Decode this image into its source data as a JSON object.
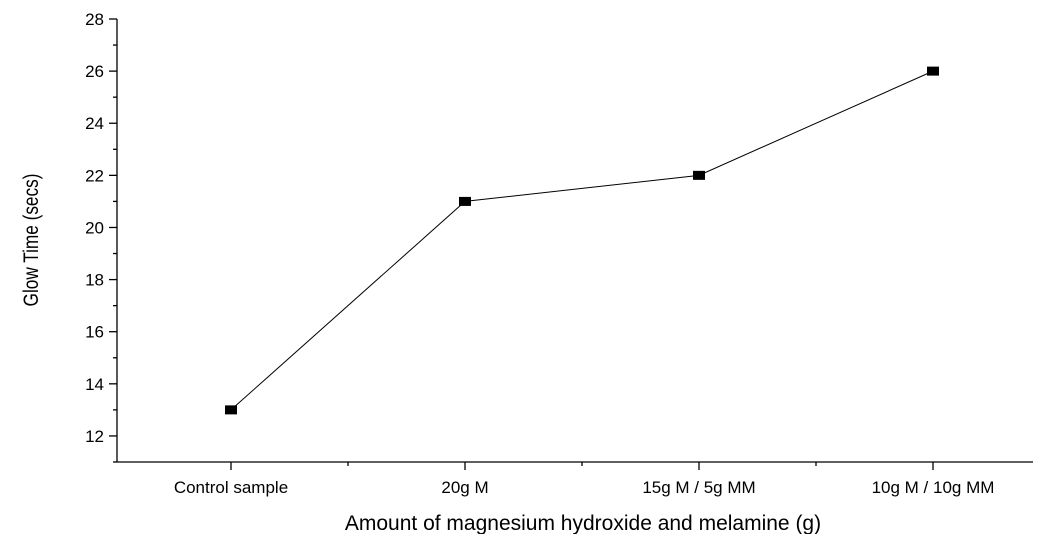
{
  "chart_data": {
    "type": "line",
    "title": "",
    "xlabel": "Amount of magnesium hydroxide and melamine (g)",
    "ylabel": "Glow Time (secs)",
    "categories": [
      "Control sample",
      "20g M",
      "15g M / 5g MM",
      "10g M / 10g MM"
    ],
    "series": [
      {
        "values": [
          13,
          21,
          22,
          26
        ]
      }
    ],
    "ylim": [
      11,
      28
    ],
    "yticks": [
      "12",
      "14",
      "16",
      "18",
      "20",
      "22",
      "24",
      "26",
      "28"
    ],
    "grid": false,
    "legend": "none",
    "colors": {
      "line": "#000000",
      "marker": "#000000",
      "axis": "#000000"
    }
  }
}
